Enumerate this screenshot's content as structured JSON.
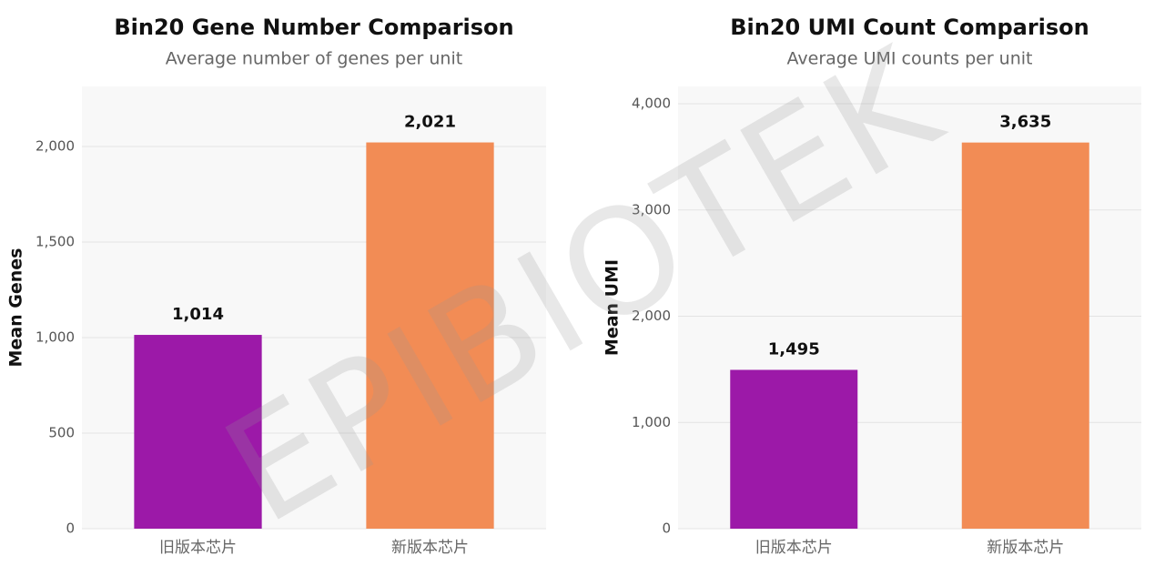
{
  "chart_data": [
    {
      "type": "bar",
      "title": "Bin20 Gene Number Comparison",
      "subtitle": "Average number of genes per unit",
      "y_label": "Mean Genes",
      "categories": [
        "旧版本芯片",
        "新版本芯片"
      ],
      "values": [
        1014,
        2021
      ],
      "value_labels": [
        "1,014",
        "2,021"
      ],
      "colors": [
        "#9c19a8",
        "#f28c55"
      ],
      "ylim": [
        0,
        2314
      ],
      "yticks": [
        0,
        500,
        {
          "value": 1000,
          "label": "1,000"
        },
        {
          "value": 1500,
          "label": "1,500"
        },
        {
          "value": 2000,
          "label": "2,000"
        }
      ],
      "grid": true
    },
    {
      "type": "bar",
      "title": "Bin20 UMI Count Comparison",
      "subtitle": "Average UMI counts per unit",
      "y_label": "Mean UMI",
      "categories": [
        "旧版本芯片",
        "新版本芯片"
      ],
      "values": [
        1495,
        3635
      ],
      "value_labels": [
        "1,495",
        "3,635"
      ],
      "colors": [
        "#9c19a8",
        "#f28c55"
      ],
      "ylim": [
        0,
        4163
      ],
      "yticks": [
        0,
        {
          "value": 1000,
          "label": "1,000"
        },
        {
          "value": 2000,
          "label": "2,000"
        },
        {
          "value": 3000,
          "label": "3,000"
        },
        {
          "value": 4000,
          "label": "4,000"
        }
      ],
      "grid": true
    }
  ],
  "watermark": "EPIBIOTEK"
}
